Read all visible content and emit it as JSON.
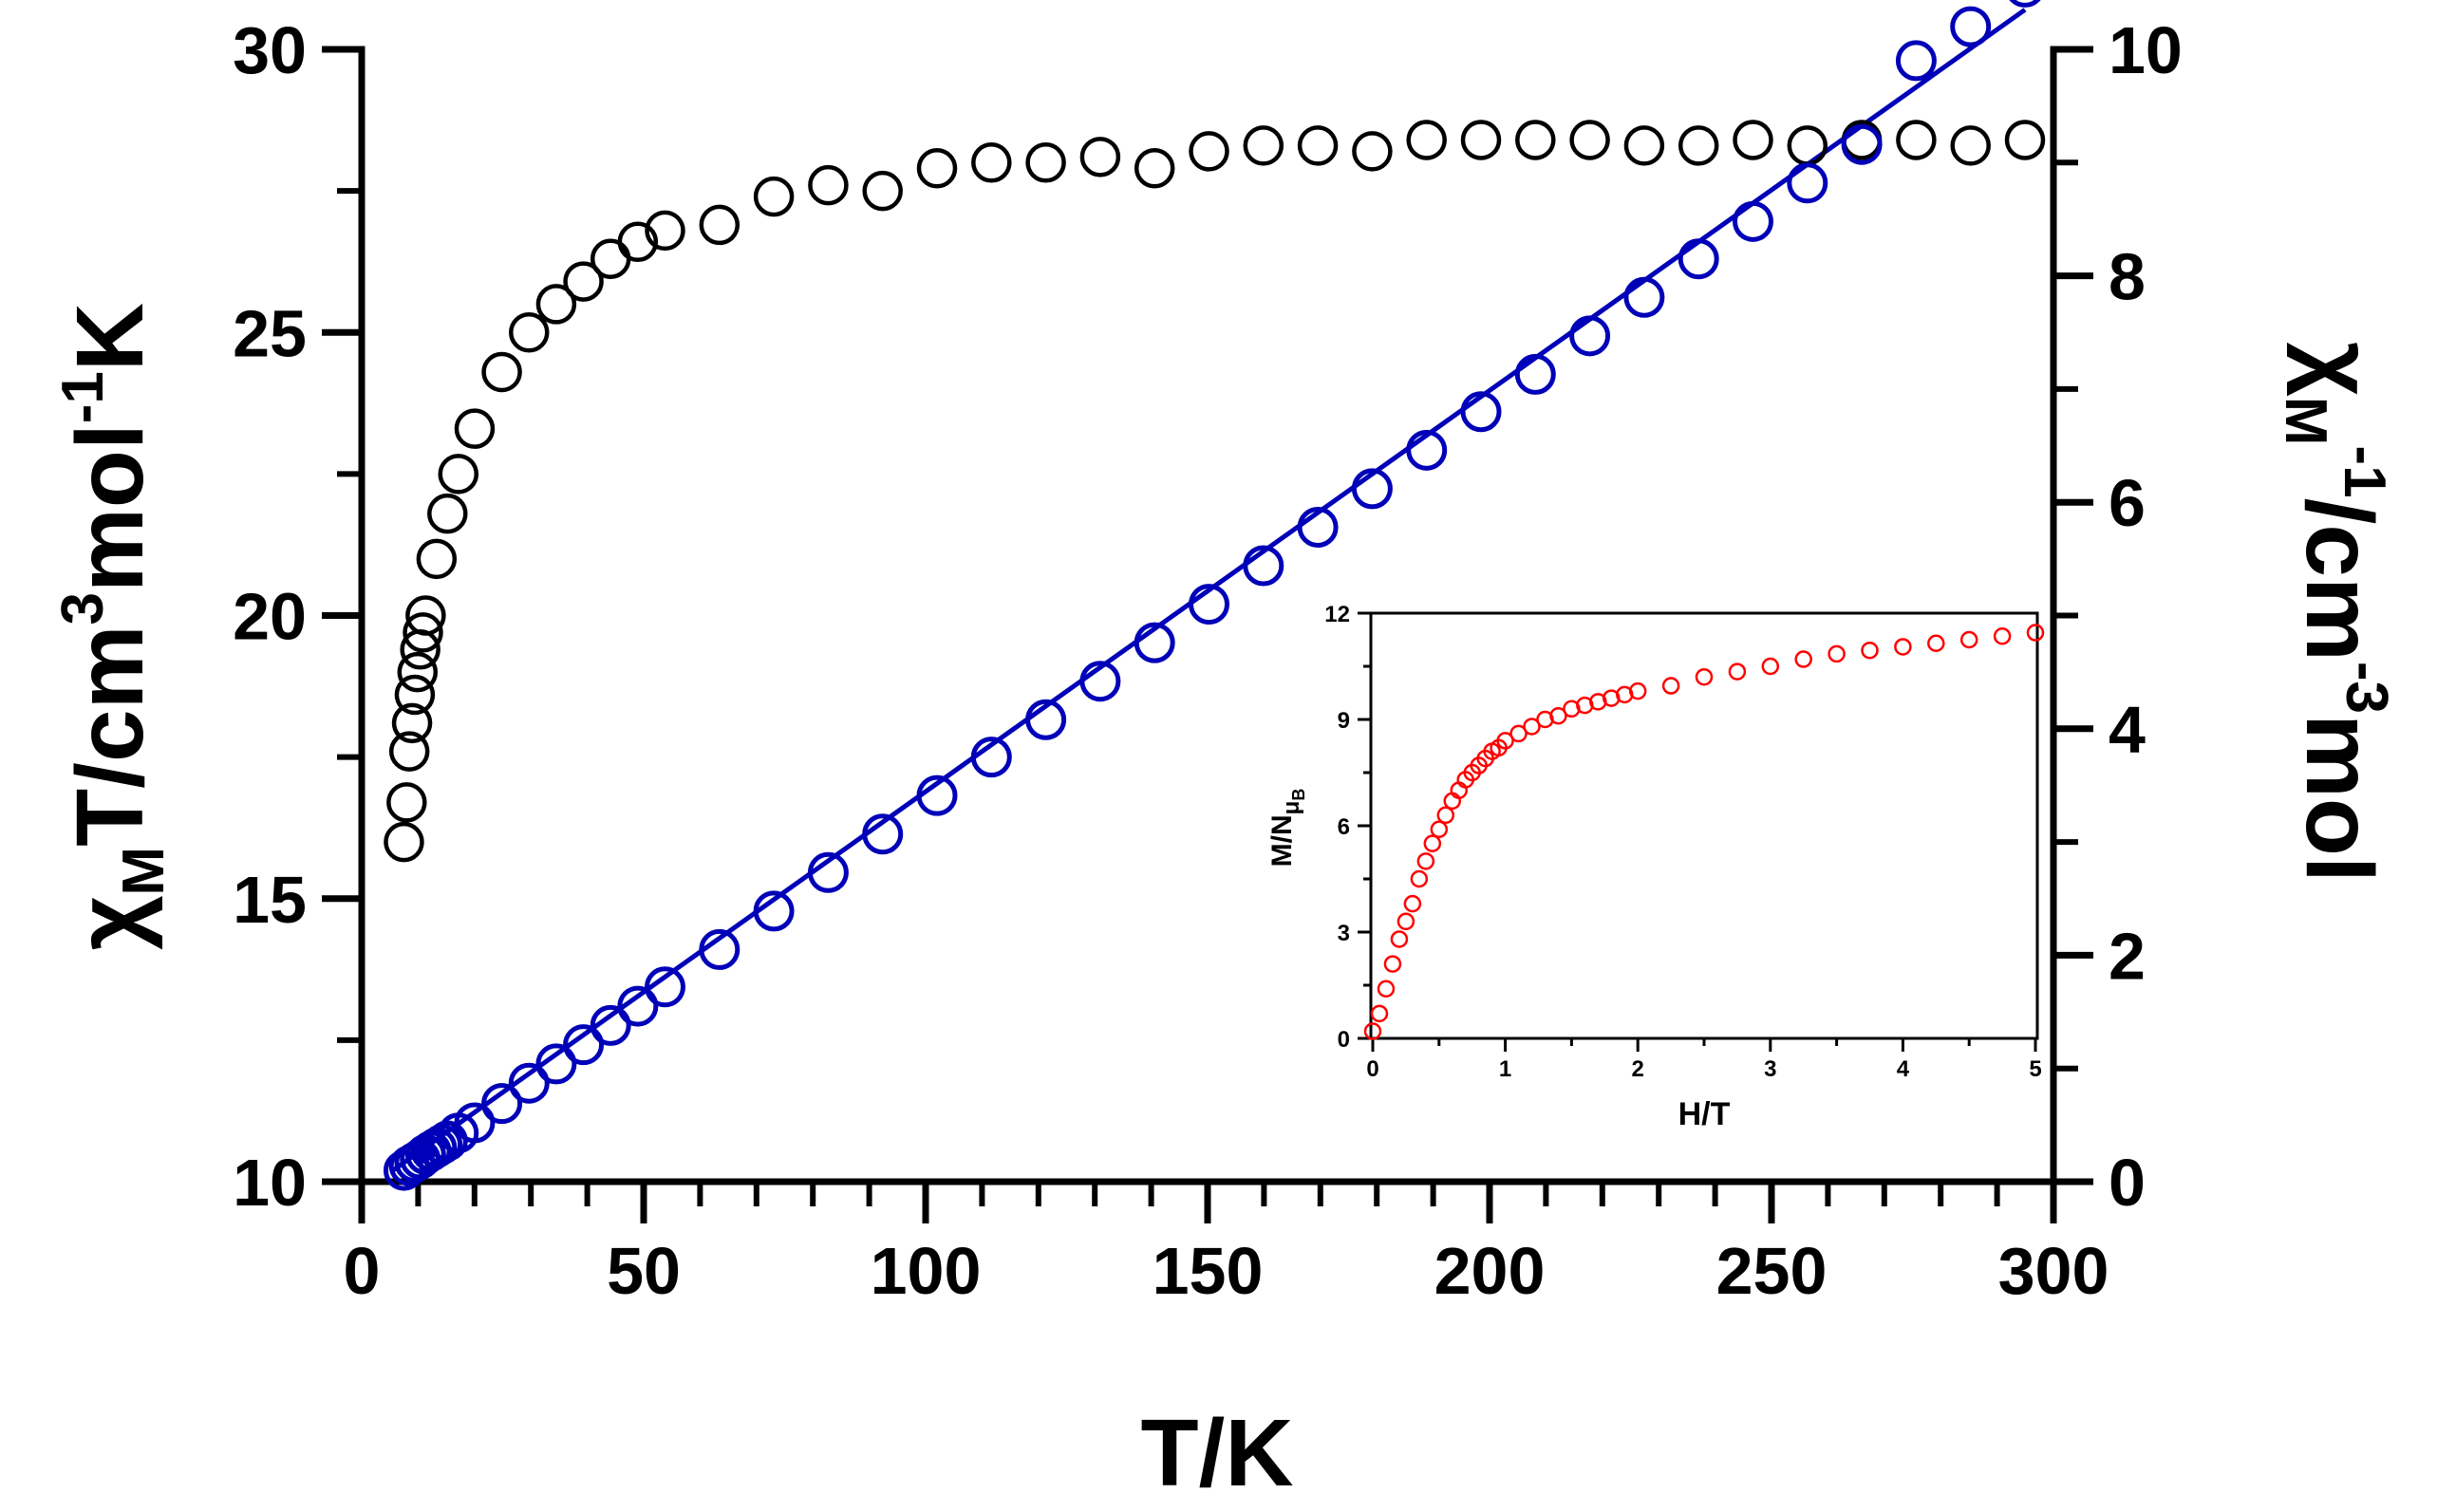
{
  "chart_data": [
    {
      "type": "scatter",
      "name": "main",
      "xlabel": "T/K",
      "ylabel_left": {
        "base": "χ",
        "sub": "M",
        "mid1": "T/cm",
        "sup1": "3",
        "mid2": "mol",
        "sup2": "-1",
        "end": "K"
      },
      "ylabel_right": {
        "base": "χ",
        "sub": "M",
        "sup1": "-1",
        "mid": "/cm",
        "sup2": "-3",
        "end": "mol"
      },
      "xlim": [
        0,
        300
      ],
      "ylim_left": [
        10,
        30
      ],
      "ylim_right": [
        0,
        10
      ],
      "xticks": [
        "0",
        "50",
        "100",
        "150",
        "200",
        "250",
        "300"
      ],
      "yticks_left": [
        "10",
        "15",
        "20",
        "25",
        "30"
      ],
      "yticks_right": [
        "0",
        "2",
        "4",
        "6",
        "8",
        "10"
      ],
      "series": [
        {
          "name": "chiMT",
          "axis": "left",
          "color": "#000000",
          "x": [
            2,
            2.5,
            3,
            3.5,
            4,
            4.5,
            5,
            5.5,
            6,
            8,
            10,
            12,
            15,
            20,
            25,
            30,
            35,
            40,
            45,
            50,
            60,
            70,
            80,
            90,
            100,
            110,
            120,
            130,
            140,
            150,
            160,
            170,
            180,
            190,
            200,
            210,
            220,
            230,
            240,
            250,
            260,
            270,
            280,
            290,
            300
          ],
          "y": [
            16.0,
            16.7,
            17.6,
            18.1,
            18.6,
            19.0,
            19.4,
            19.7,
            20.0,
            21.0,
            21.8,
            22.5,
            23.3,
            24.3,
            25.0,
            25.5,
            25.9,
            26.3,
            26.6,
            26.8,
            26.9,
            27.4,
            27.6,
            27.5,
            27.9,
            28.0,
            28.0,
            28.1,
            27.9,
            28.2,
            28.3,
            28.3,
            28.2,
            28.4,
            28.4,
            28.4,
            28.4,
            28.3,
            28.3,
            28.4,
            28.3,
            28.4,
            28.4,
            28.3,
            28.4
          ]
        },
        {
          "name": "chiM_inverse",
          "axis": "right",
          "color": "#0000b8",
          "x": [
            2,
            3,
            4,
            5,
            6,
            7,
            8,
            9,
            10,
            12,
            15,
            20,
            25,
            30,
            35,
            40,
            45,
            50,
            60,
            70,
            80,
            90,
            100,
            110,
            120,
            130,
            140,
            150,
            160,
            170,
            180,
            190,
            200,
            210,
            220,
            230,
            240,
            250,
            260,
            270,
            280,
            290,
            300
          ],
          "y": [
            0.1,
            0.14,
            0.17,
            0.2,
            0.24,
            0.27,
            0.3,
            0.33,
            0.36,
            0.43,
            0.52,
            0.69,
            0.87,
            1.04,
            1.21,
            1.38,
            1.55,
            1.72,
            2.05,
            2.39,
            2.73,
            3.07,
            3.41,
            3.75,
            4.08,
            4.42,
            4.76,
            5.1,
            5.44,
            5.78,
            6.12,
            6.46,
            6.8,
            7.13,
            7.47,
            7.81,
            8.15,
            8.48,
            8.82,
            9.16,
            9.9,
            10.2,
            10.55
          ]
        },
        {
          "name": "fit",
          "axis": "right",
          "type": "line",
          "color": "#0000b8",
          "x": [
            0,
            300
          ],
          "y": [
            0.1,
            10.35
          ]
        }
      ]
    },
    {
      "type": "scatter",
      "name": "inset",
      "xlabel": "H/T",
      "ylabel": {
        "base": "M/N",
        "sub": "μ",
        "subsub": "B"
      },
      "xlim": [
        0,
        5
      ],
      "ylim": [
        0,
        12
      ],
      "xticks": [
        "0",
        "1",
        "2",
        "3",
        "4",
        "5"
      ],
      "yticks": [
        "0",
        "3",
        "6",
        "9",
        "12"
      ],
      "series": [
        {
          "name": "magnetization",
          "color": "#ff0000",
          "x": [
            0.0,
            0.05,
            0.1,
            0.15,
            0.2,
            0.25,
            0.3,
            0.35,
            0.4,
            0.45,
            0.5,
            0.55,
            0.6,
            0.65,
            0.7,
            0.75,
            0.8,
            0.85,
            0.9,
            0.95,
            1.0,
            1.1,
            1.2,
            1.3,
            1.4,
            1.5,
            1.6,
            1.7,
            1.8,
            1.9,
            2.0,
            2.25,
            2.5,
            2.75,
            3.0,
            3.25,
            3.5,
            3.75,
            4.0,
            4.25,
            4.5,
            4.75,
            5.0
          ],
          "y": [
            0.2,
            0.7,
            1.4,
            2.1,
            2.8,
            3.3,
            3.8,
            4.5,
            5.0,
            5.5,
            5.9,
            6.3,
            6.7,
            7.0,
            7.3,
            7.5,
            7.7,
            7.9,
            8.1,
            8.2,
            8.4,
            8.6,
            8.8,
            9.0,
            9.1,
            9.3,
            9.4,
            9.5,
            9.6,
            9.7,
            9.8,
            9.95,
            10.2,
            10.35,
            10.5,
            10.7,
            10.85,
            10.95,
            11.05,
            11.15,
            11.25,
            11.35,
            11.45
          ]
        }
      ]
    }
  ]
}
